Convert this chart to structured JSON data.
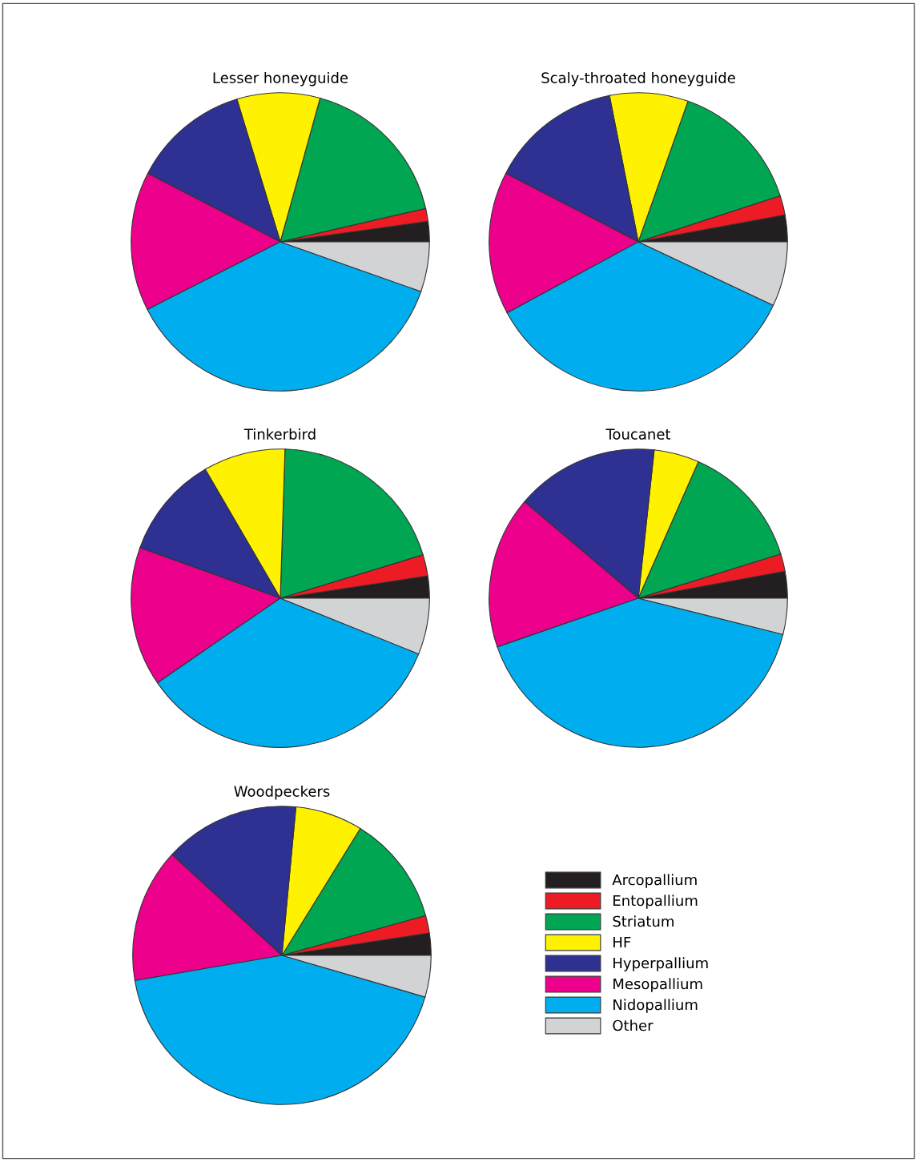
{
  "chart_data": [
    {
      "type": "pie",
      "title": "Lesser honeyguide",
      "legend": "bottom right",
      "categories": [
        "Arcopallium",
        "Entopallium",
        "Striatum",
        "HF",
        "Hyperpallium",
        "Mesopallium",
        "Nidopallium",
        "Other"
      ],
      "values": [
        2.2,
        1.4,
        17.1,
        9.0,
        12.7,
        15.1,
        37.1,
        5.4
      ],
      "colors": [
        "#231f20",
        "#ed1c24",
        "#00a651",
        "#fff200",
        "#2e3192",
        "#ec008c",
        "#00aeef",
        "#d1d3d4"
      ]
    },
    {
      "type": "pie",
      "title": "Scaly-throated honeyguide",
      "categories": [
        null,
        null,
        null,
        null,
        null,
        null,
        null,
        null
      ],
      "values": [
        2.9,
        2.1,
        14.6,
        8.5,
        14.3,
        15.5,
        35.1,
        7.0
      ],
      "colors": [
        "#231f20",
        "#ed1c24",
        "#00a651",
        "#fff200",
        "#2e3192",
        "#ec008c",
        "#00aeef",
        "#d1d3d4"
      ]
    },
    {
      "type": "pie",
      "title": "Tinkerbird",
      "categories": [
        null,
        null,
        null,
        null,
        null,
        null,
        null,
        null
      ],
      "values": [
        2.4,
        2.3,
        19.8,
        8.9,
        11.1,
        15.1,
        34.3,
        6.1
      ],
      "colors": [
        "#231f20",
        "#ed1c24",
        "#00a651",
        "#fff200",
        "#2e3192",
        "#ec008c",
        "#00aeef",
        "#d1d3d4"
      ]
    },
    {
      "type": "pie",
      "title": "Toucanet",
      "categories": [
        null,
        null,
        null,
        null,
        null,
        null,
        null,
        null
      ],
      "values": [
        2.9,
        1.9,
        13.6,
        4.9,
        15.5,
        16.5,
        40.8,
        3.9
      ],
      "colors": [
        "#231f20",
        "#ed1c24",
        "#00a651",
        "#fff200",
        "#2e3192",
        "#ec008c",
        "#00aeef",
        "#d1d3d4"
      ]
    },
    {
      "type": "pie",
      "title": "Woodpeckers",
      "categories": [
        null,
        null,
        null,
        null,
        null,
        null,
        null,
        null
      ],
      "values": [
        2.4,
        1.9,
        11.9,
        7.3,
        14.7,
        14.5,
        42.8,
        4.5
      ],
      "colors": [
        "#231f20",
        "#ed1c24",
        "#00a651",
        "#fff200",
        "#2e3192",
        "#ec008c",
        "#00aeef",
        "#d1d3d4"
      ]
    }
  ]
}
